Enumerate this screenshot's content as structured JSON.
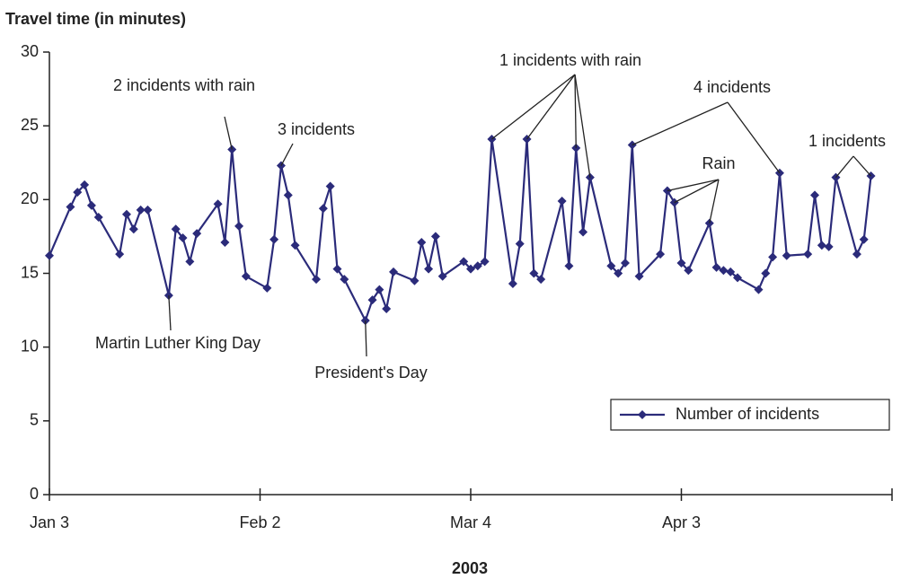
{
  "chart_data": {
    "type": "line",
    "y_label": "Travel time (in minutes)",
    "x_label": "2003",
    "x": [
      "2003-01-03",
      "2003-01-06",
      "2003-01-07",
      "2003-01-08",
      "2003-01-09",
      "2003-01-10",
      "2003-01-13",
      "2003-01-14",
      "2003-01-15",
      "2003-01-16",
      "2003-01-17",
      "2003-01-20",
      "2003-01-21",
      "2003-01-22",
      "2003-01-23",
      "2003-01-24",
      "2003-01-27",
      "2003-01-28",
      "2003-01-29",
      "2003-01-30",
      "2003-01-31",
      "2003-02-03",
      "2003-02-04",
      "2003-02-05",
      "2003-02-06",
      "2003-02-07",
      "2003-02-10",
      "2003-02-11",
      "2003-02-12",
      "2003-02-13",
      "2003-02-14",
      "2003-02-17",
      "2003-02-18",
      "2003-02-19",
      "2003-02-20",
      "2003-02-21",
      "2003-02-24",
      "2003-02-25",
      "2003-02-26",
      "2003-02-27",
      "2003-02-28",
      "2003-03-03",
      "2003-03-04",
      "2003-03-05",
      "2003-03-06",
      "2003-03-07",
      "2003-03-10",
      "2003-03-11",
      "2003-03-12",
      "2003-03-13",
      "2003-03-14",
      "2003-03-17",
      "2003-03-18",
      "2003-03-19",
      "2003-03-20",
      "2003-03-21",
      "2003-03-24",
      "2003-03-25",
      "2003-03-26",
      "2003-03-27",
      "2003-03-28",
      "2003-03-31",
      "2003-04-01",
      "2003-04-02",
      "2003-04-03",
      "2003-04-04",
      "2003-04-07",
      "2003-04-08",
      "2003-04-09",
      "2003-04-10",
      "2003-04-11",
      "2003-04-14",
      "2003-04-15",
      "2003-04-16",
      "2003-04-17",
      "2003-04-18",
      "2003-04-21",
      "2003-04-22",
      "2003-04-23",
      "2003-04-24",
      "2003-04-25",
      "2003-04-28",
      "2003-04-29",
      "2003-04-30"
    ],
    "series": [
      {
        "name": "Number of incidents",
        "color": "#2b2b7a",
        "values": [
          16.2,
          19.5,
          20.5,
          21.0,
          19.6,
          18.8,
          16.3,
          19.0,
          18.0,
          19.3,
          19.3,
          13.5,
          18.0,
          17.4,
          15.8,
          17.7,
          19.7,
          17.1,
          23.4,
          18.2,
          14.8,
          14.0,
          17.3,
          22.3,
          20.3,
          16.9,
          14.6,
          19.4,
          20.9,
          15.3,
          14.6,
          11.8,
          13.2,
          13.9,
          12.6,
          15.1,
          14.5,
          17.1,
          15.3,
          17.5,
          14.8,
          15.8,
          15.3,
          15.5,
          15.8,
          24.1,
          14.3,
          17.0,
          24.1,
          15.0,
          14.6,
          19.9,
          15.5,
          23.5,
          17.8,
          21.5,
          15.5,
          15.0,
          15.7,
          23.7,
          14.8,
          16.3,
          20.6,
          19.8,
          15.7,
          15.2,
          18.4,
          15.4,
          15.2,
          15.1,
          14.7,
          13.9,
          15.0,
          16.1,
          21.8,
          16.2,
          16.3,
          20.3,
          16.9,
          16.8,
          21.5,
          16.3,
          17.3,
          21.6
        ]
      }
    ],
    "xlim": [
      "2003-01-03",
      "2003-05-03"
    ],
    "xticks": [
      {
        "value": "2003-01-03",
        "label": "Jan 3"
      },
      {
        "value": "2003-02-02",
        "label": "Feb 2"
      },
      {
        "value": "2003-03-04",
        "label": "Mar 4"
      },
      {
        "value": "2003-04-03",
        "label": "Apr 3"
      }
    ],
    "ylim": [
      0,
      30
    ],
    "yticks": [
      0,
      5,
      10,
      15,
      20,
      25,
      30
    ],
    "grid": false,
    "legend": "lower right",
    "annotations": [
      "2 incidents with rain",
      "3 incidents",
      "Martin Luther King Day",
      "President's Day",
      "1 incidents with rain",
      "4 incidents",
      "Rain",
      "1 incidents"
    ]
  }
}
